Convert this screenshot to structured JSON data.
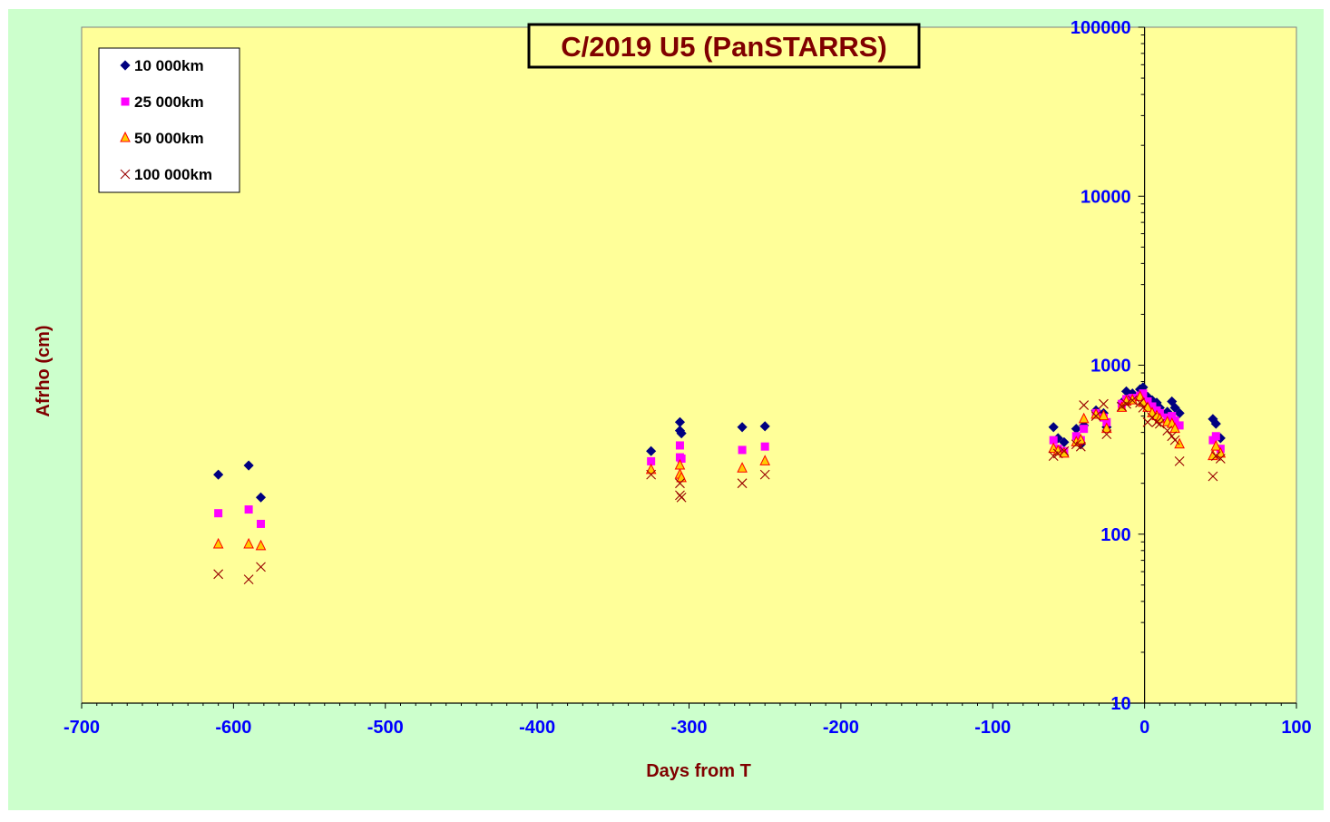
{
  "chart_data": {
    "type": "scatter",
    "title": "C/2019 U5 (PanSTARRS)",
    "xlabel": "Days from T",
    "ylabel": "Afrho (cm)",
    "xlim": [
      -700,
      100
    ],
    "ylim": [
      10,
      100000
    ],
    "yscale": "log",
    "grid": false,
    "legend_position": "top-left",
    "x_ticks": [
      "-700",
      "-600",
      "-500",
      "-400",
      "-300",
      "-200",
      "-100",
      "0",
      "100"
    ],
    "y_ticks": [
      "10",
      "100",
      "1000",
      "10000",
      "100000"
    ],
    "colors": {
      "page_background": "#ccffcc",
      "plot_background": "#ffff99",
      "title_text": "#800000",
      "axis_label_text": "#800000",
      "tick_text": "#0000ff",
      "series_10000": "#000080",
      "series_25000": "#ff00ff",
      "series_50000_fill": "#ffcc00",
      "series_50000_edge": "#ff0000",
      "series_100000": "#990000"
    },
    "series": [
      {
        "name": "10 000km",
        "marker": "diamond",
        "points": [
          [
            -610,
            225
          ],
          [
            -590,
            255
          ],
          [
            -582,
            165
          ],
          [
            -325,
            310
          ],
          [
            -306,
            460
          ],
          [
            -306,
            410
          ],
          [
            -305,
            395
          ],
          [
            -265,
            430
          ],
          [
            -250,
            435
          ],
          [
            -60,
            430
          ],
          [
            -57,
            370
          ],
          [
            -53,
            350
          ],
          [
            -45,
            420
          ],
          [
            -42,
            340
          ],
          [
            -40,
            440
          ],
          [
            -32,
            540
          ],
          [
            -27,
            520
          ],
          [
            -25,
            430
          ],
          [
            -15,
            600
          ],
          [
            -12,
            700
          ],
          [
            -8,
            680
          ],
          [
            -3,
            720
          ],
          [
            -1,
            740
          ],
          [
            2,
            650
          ],
          [
            5,
            620
          ],
          [
            8,
            600
          ],
          [
            10,
            560
          ],
          [
            15,
            530
          ],
          [
            18,
            610
          ],
          [
            20,
            560
          ],
          [
            23,
            520
          ],
          [
            45,
            480
          ],
          [
            47,
            450
          ],
          [
            50,
            370
          ]
        ]
      },
      {
        "name": "25 000km",
        "marker": "square",
        "points": [
          [
            -610,
            133
          ],
          [
            -590,
            140
          ],
          [
            -582,
            115
          ],
          [
            -325,
            270
          ],
          [
            -306,
            335
          ],
          [
            -306,
            285
          ],
          [
            -305,
            280
          ],
          [
            -265,
            315
          ],
          [
            -250,
            330
          ],
          [
            -60,
            360
          ],
          [
            -57,
            320
          ],
          [
            -53,
            310
          ],
          [
            -45,
            380
          ],
          [
            -42,
            360
          ],
          [
            -40,
            420
          ],
          [
            -32,
            520
          ],
          [
            -27,
            490
          ],
          [
            -25,
            460
          ],
          [
            -15,
            590
          ],
          [
            -12,
            630
          ],
          [
            -8,
            640
          ],
          [
            -3,
            660
          ],
          [
            -1,
            680
          ],
          [
            2,
            610
          ],
          [
            5,
            570
          ],
          [
            8,
            540
          ],
          [
            10,
            520
          ],
          [
            15,
            490
          ],
          [
            18,
            500
          ],
          [
            20,
            470
          ],
          [
            23,
            440
          ],
          [
            45,
            360
          ],
          [
            47,
            380
          ],
          [
            50,
            320
          ]
        ]
      },
      {
        "name": "50 000km",
        "marker": "triangle",
        "points": [
          [
            -610,
            87
          ],
          [
            -590,
            87
          ],
          [
            -582,
            85
          ],
          [
            -325,
            240
          ],
          [
            -306,
            225
          ],
          [
            -306,
            255
          ],
          [
            -305,
            215
          ],
          [
            -265,
            245
          ],
          [
            -250,
            270
          ],
          [
            -60,
            320
          ],
          [
            -57,
            310
          ],
          [
            -53,
            300
          ],
          [
            -45,
            350
          ],
          [
            -42,
            360
          ],
          [
            -40,
            480
          ],
          [
            -32,
            510
          ],
          [
            -27,
            500
          ],
          [
            -25,
            420
          ],
          [
            -15,
            560
          ],
          [
            -12,
            610
          ],
          [
            -8,
            620
          ],
          [
            -3,
            650
          ],
          [
            -1,
            600
          ],
          [
            2,
            560
          ],
          [
            5,
            520
          ],
          [
            8,
            500
          ],
          [
            10,
            480
          ],
          [
            15,
            460
          ],
          [
            18,
            450
          ],
          [
            20,
            420
          ],
          [
            23,
            340
          ],
          [
            45,
            290
          ],
          [
            47,
            330
          ],
          [
            50,
            300
          ]
        ]
      },
      {
        "name": "100 000km",
        "marker": "x",
        "points": [
          [
            -610,
            58
          ],
          [
            -590,
            54
          ],
          [
            -582,
            64
          ],
          [
            -325,
            225
          ],
          [
            -306,
            200
          ],
          [
            -306,
            170
          ],
          [
            -305,
            165
          ],
          [
            -265,
            200
          ],
          [
            -250,
            225
          ],
          [
            -60,
            290
          ],
          [
            -57,
            300
          ],
          [
            -53,
            310
          ],
          [
            -45,
            340
          ],
          [
            -42,
            330
          ],
          [
            -40,
            580
          ],
          [
            -32,
            500
          ],
          [
            -27,
            590
          ],
          [
            -25,
            390
          ],
          [
            -15,
            570
          ],
          [
            -12,
            590
          ],
          [
            -8,
            620
          ],
          [
            -3,
            600
          ],
          [
            -1,
            560
          ],
          [
            2,
            460
          ],
          [
            5,
            490
          ],
          [
            8,
            460
          ],
          [
            10,
            450
          ],
          [
            15,
            410
          ],
          [
            18,
            380
          ],
          [
            20,
            360
          ],
          [
            23,
            270
          ],
          [
            45,
            220
          ],
          [
            47,
            290
          ],
          [
            50,
            280
          ]
        ]
      }
    ]
  }
}
